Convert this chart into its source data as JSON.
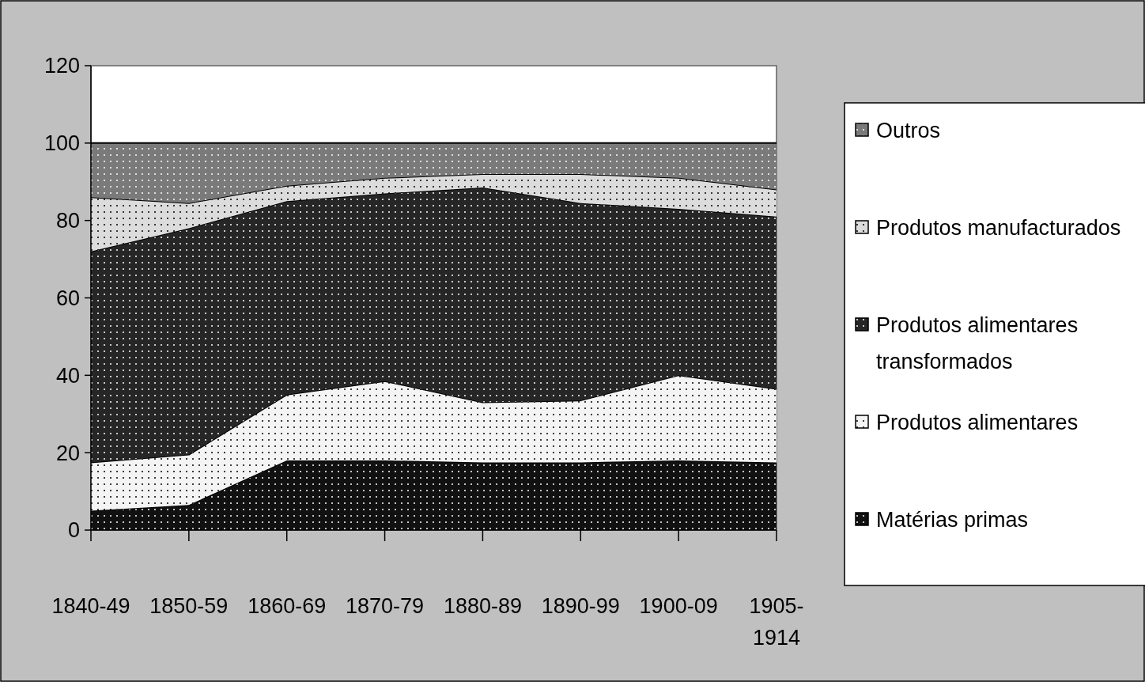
{
  "chart_data": {
    "type": "area",
    "stacked": true,
    "categories": [
      "1840-49",
      "1850-59",
      "1860-69",
      "1870-79",
      "1880-89",
      "1890-99",
      "1900-09",
      "1905-1914"
    ],
    "series": [
      {
        "name": "Matérias primas",
        "color": "#111111",
        "values": [
          5,
          6.5,
          18,
          18,
          17.5,
          17.5,
          18,
          17.5
        ]
      },
      {
        "name": "Produtos alimentares",
        "color": "#f4f4f4",
        "values": [
          12.5,
          13,
          17,
          20.5,
          15.5,
          16,
          22,
          19
        ]
      },
      {
        "name": "Produtos alimentares transformados",
        "color": "#262626",
        "values": [
          54.5,
          58.5,
          50,
          48.5,
          55.5,
          51,
          43,
          44.5
        ]
      },
      {
        "name": "Produtos manufacturados",
        "color": "#dcdcdc",
        "values": [
          14,
          6.5,
          4,
          4,
          3.5,
          7.5,
          8,
          7
        ]
      },
      {
        "name": "Outros",
        "color": "#7a7a7a",
        "values": [
          14,
          15.5,
          11,
          9,
          8,
          8,
          9,
          12
        ]
      }
    ],
    "ylim": [
      0,
      120
    ],
    "yticks": [
      0,
      20,
      40,
      60,
      80,
      100,
      120
    ],
    "legend": "right"
  }
}
